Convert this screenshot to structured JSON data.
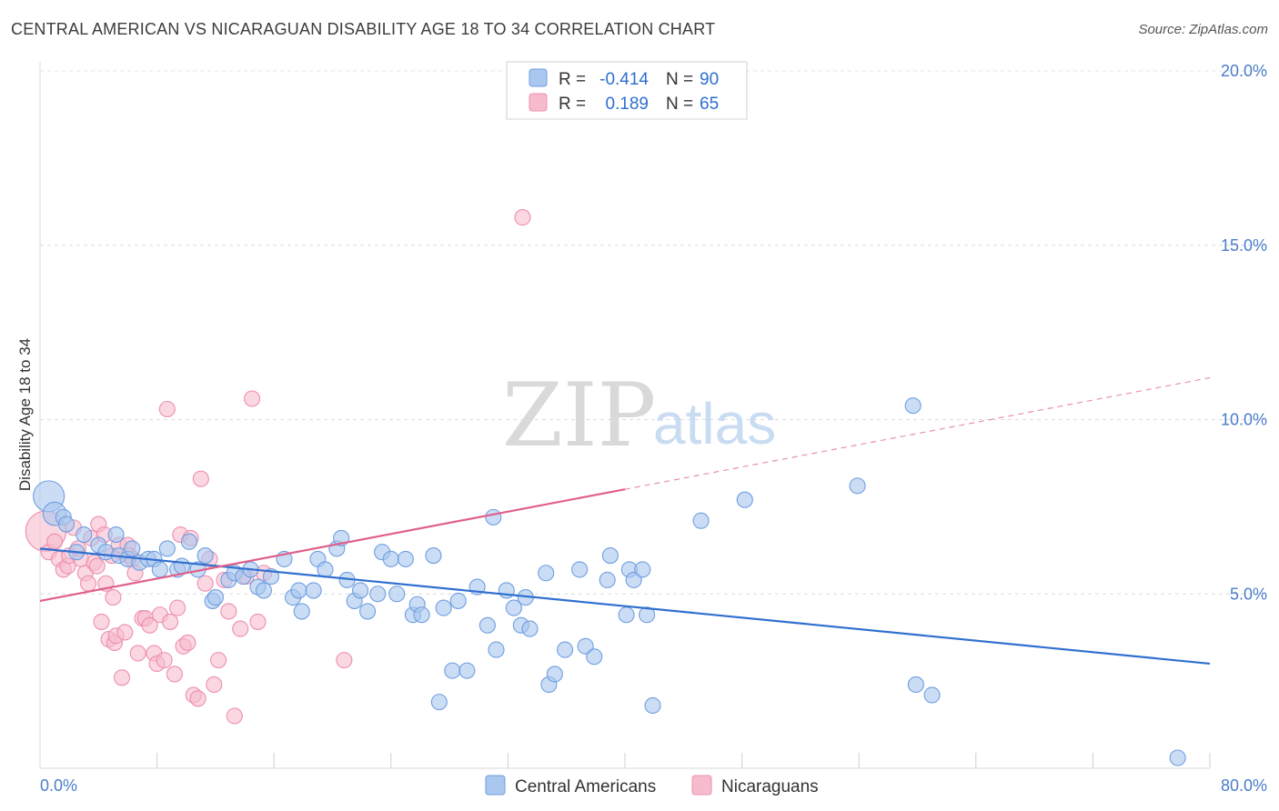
{
  "title": "CENTRAL AMERICAN VS NICARAGUAN DISABILITY AGE 18 TO 34 CORRELATION CHART",
  "source": "Source: ZipAtlas.com",
  "watermark": {
    "zip": "ZIP",
    "atlas": "atlas"
  },
  "legend_top": {
    "rows": [
      {
        "r_label": "R =",
        "r_value": "-0.414",
        "n_label": "N =",
        "n_value": "90",
        "color": "#a9c7ef",
        "stroke": "#6f9ee0"
      },
      {
        "r_label": "R =",
        "r_value": "0.189",
        "n_label": "N =",
        "n_value": "65",
        "color": "#f6bccd",
        "stroke": "#ee8fae"
      }
    ]
  },
  "legend_bottom": [
    {
      "label": "Central Americans",
      "color": "#a9c7ef",
      "stroke": "#6f9ee0"
    },
    {
      "label": "Nicaraguans",
      "color": "#f6bccd",
      "stroke": "#ee8fae"
    }
  ],
  "chart_data": {
    "type": "scatter",
    "title": "CENTRAL AMERICAN VS NICARAGUAN DISABILITY AGE 18 TO 34 CORRELATION CHART",
    "xlabel": "",
    "ylabel": "Disability Age 18 to 34",
    "xlim": [
      0,
      80
    ],
    "ylim": [
      0,
      20
    ],
    "x_tick_labels": [
      "0.0%",
      "80.0%"
    ],
    "y_ticks": [
      5,
      10,
      15,
      20
    ],
    "y_tick_labels": [
      "5.0%",
      "10.0%",
      "15.0%",
      "20.0%"
    ],
    "grid": true,
    "legend_position": "top-center",
    "series": [
      {
        "name": "Central Americans",
        "color": "#6f9ee0",
        "fill": "#a9c7ef",
        "trend": {
          "x": [
            0,
            80
          ],
          "y": [
            6.3,
            3.0
          ],
          "color": "#2f6fcf",
          "style": "solid"
        },
        "points": [
          [
            0.6,
            7.8,
            2.0
          ],
          [
            1.0,
            7.3,
            1.5
          ],
          [
            1.6,
            7.2,
            1.0
          ],
          [
            1.8,
            7.0,
            1.0
          ],
          [
            2.5,
            6.2,
            1.0
          ],
          [
            3.0,
            6.7,
            1.0
          ],
          [
            4.0,
            6.4,
            1.0
          ],
          [
            4.5,
            6.2,
            1.0
          ],
          [
            5.2,
            6.7,
            1.0
          ],
          [
            5.4,
            6.1,
            1.0
          ],
          [
            6.0,
            6.0,
            1.0
          ],
          [
            6.3,
            6.3,
            1.0
          ],
          [
            6.8,
            5.9,
            1.0
          ],
          [
            7.4,
            6.0,
            1.0
          ],
          [
            7.8,
            6.0,
            1.0
          ],
          [
            8.2,
            5.7,
            1.0
          ],
          [
            8.7,
            6.3,
            1.0
          ],
          [
            9.4,
            5.7,
            1.0
          ],
          [
            9.7,
            5.8,
            1.0
          ],
          [
            10.2,
            6.5,
            1.0
          ],
          [
            10.8,
            5.7,
            1.0
          ],
          [
            11.3,
            6.1,
            1.0
          ],
          [
            11.8,
            4.8,
            1.0
          ],
          [
            12.0,
            4.9,
            1.0
          ],
          [
            12.9,
            5.4,
            1.0
          ],
          [
            13.3,
            5.6,
            1.0
          ],
          [
            13.9,
            5.5,
            1.0
          ],
          [
            14.4,
            5.7,
            1.0
          ],
          [
            14.9,
            5.2,
            1.0
          ],
          [
            15.3,
            5.1,
            1.0
          ],
          [
            15.8,
            5.5,
            1.0
          ],
          [
            16.7,
            6.0,
            1.0
          ],
          [
            17.3,
            4.9,
            1.0
          ],
          [
            17.7,
            5.1,
            1.0
          ],
          [
            17.9,
            4.5,
            1.0
          ],
          [
            18.7,
            5.1,
            1.0
          ],
          [
            19.0,
            6.0,
            1.0
          ],
          [
            19.5,
            5.7,
            1.0
          ],
          [
            20.3,
            6.3,
            1.0
          ],
          [
            20.6,
            6.6,
            1.0
          ],
          [
            21.0,
            5.4,
            1.0
          ],
          [
            21.5,
            4.8,
            1.0
          ],
          [
            21.9,
            5.1,
            1.0
          ],
          [
            22.4,
            4.5,
            1.0
          ],
          [
            23.1,
            5.0,
            1.0
          ],
          [
            23.4,
            6.2,
            1.0
          ],
          [
            24.0,
            6.0,
            1.0
          ],
          [
            24.4,
            5.0,
            1.0
          ],
          [
            25.0,
            6.0,
            1.0
          ],
          [
            25.5,
            4.4,
            1.0
          ],
          [
            25.8,
            4.7,
            1.0
          ],
          [
            26.1,
            4.4,
            1.0
          ],
          [
            26.9,
            6.1,
            1.0
          ],
          [
            27.3,
            1.9,
            1.0
          ],
          [
            27.6,
            4.6,
            1.0
          ],
          [
            28.2,
            2.8,
            1.0
          ],
          [
            28.6,
            4.8,
            1.0
          ],
          [
            29.2,
            2.8,
            1.0
          ],
          [
            29.9,
            5.2,
            1.0
          ],
          [
            30.6,
            4.1,
            1.0
          ],
          [
            31.0,
            7.2,
            1.0
          ],
          [
            31.2,
            3.4,
            1.0
          ],
          [
            31.9,
            5.1,
            1.0
          ],
          [
            32.4,
            4.6,
            1.0
          ],
          [
            32.9,
            4.1,
            1.0
          ],
          [
            33.2,
            4.9,
            1.0
          ],
          [
            33.5,
            4.0,
            1.0
          ],
          [
            34.6,
            5.6,
            1.0
          ],
          [
            34.8,
            2.4,
            1.0
          ],
          [
            35.2,
            2.7,
            1.0
          ],
          [
            35.9,
            3.4,
            1.0
          ],
          [
            36.9,
            5.7,
            1.0
          ],
          [
            37.3,
            3.5,
            1.0
          ],
          [
            37.9,
            3.2,
            1.0
          ],
          [
            38.8,
            5.4,
            1.0
          ],
          [
            39.0,
            6.1,
            1.0
          ],
          [
            40.1,
            4.4,
            1.0
          ],
          [
            40.3,
            5.7,
            1.0
          ],
          [
            40.6,
            5.4,
            1.0
          ],
          [
            41.2,
            5.7,
            1.0
          ],
          [
            41.5,
            4.4,
            1.0
          ],
          [
            41.9,
            1.8,
            1.0
          ],
          [
            45.2,
            7.1,
            1.0
          ],
          [
            48.2,
            7.7,
            1.0
          ],
          [
            55.9,
            8.1,
            1.0
          ],
          [
            59.7,
            10.4,
            1.0
          ],
          [
            59.9,
            2.4,
            1.0
          ],
          [
            61.0,
            2.1,
            1.0
          ],
          [
            77.8,
            0.3,
            1.0
          ]
        ]
      },
      {
        "name": "Nicaraguans",
        "color": "#ee8fae",
        "fill": "#f6bccd",
        "trend": {
          "x": [
            0,
            40
          ],
          "y": [
            4.8,
            8.0
          ],
          "color": "#e0608a",
          "style": "solid",
          "extend_to": [
            80,
            11.2
          ],
          "extend_style": "dashed"
        },
        "points": [
          [
            0.4,
            6.8,
            2.6
          ],
          [
            0.6,
            6.2,
            1.0
          ],
          [
            1.0,
            6.5,
            1.0
          ],
          [
            1.3,
            6.0,
            1.0
          ],
          [
            1.6,
            5.7,
            1.0
          ],
          [
            1.9,
            5.8,
            1.0
          ],
          [
            2.0,
            6.1,
            1.0
          ],
          [
            2.3,
            6.9,
            1.0
          ],
          [
            2.6,
            6.3,
            1.0
          ],
          [
            2.8,
            6.0,
            1.0
          ],
          [
            3.1,
            5.6,
            1.0
          ],
          [
            3.3,
            5.3,
            1.0
          ],
          [
            3.5,
            6.6,
            1.0
          ],
          [
            3.7,
            5.9,
            1.0
          ],
          [
            3.9,
            5.8,
            1.0
          ],
          [
            4.0,
            7.0,
            1.0
          ],
          [
            4.2,
            4.2,
            1.0
          ],
          [
            4.4,
            6.7,
            1.0
          ],
          [
            4.5,
            5.3,
            1.0
          ],
          [
            4.7,
            3.7,
            1.0
          ],
          [
            4.9,
            6.1,
            1.0
          ],
          [
            5.0,
            4.9,
            1.0
          ],
          [
            5.1,
            3.6,
            1.0
          ],
          [
            5.2,
            3.8,
            1.0
          ],
          [
            5.4,
            6.4,
            1.0
          ],
          [
            5.6,
            2.6,
            1.0
          ],
          [
            5.8,
            3.9,
            1.0
          ],
          [
            6.0,
            6.4,
            1.0
          ],
          [
            6.1,
            6.1,
            1.0
          ],
          [
            6.3,
            6.0,
            1.0
          ],
          [
            6.5,
            5.6,
            1.0
          ],
          [
            6.7,
            3.3,
            1.0
          ],
          [
            7.0,
            4.3,
            1.0
          ],
          [
            7.2,
            4.3,
            1.0
          ],
          [
            7.5,
            4.1,
            1.0
          ],
          [
            7.8,
            3.3,
            1.0
          ],
          [
            8.0,
            3.0,
            1.0
          ],
          [
            8.2,
            4.4,
            1.0
          ],
          [
            8.5,
            3.1,
            1.0
          ],
          [
            8.7,
            10.3,
            1.0
          ],
          [
            8.9,
            4.2,
            1.0
          ],
          [
            9.2,
            2.7,
            1.0
          ],
          [
            9.4,
            4.6,
            1.0
          ],
          [
            9.6,
            6.7,
            1.0
          ],
          [
            9.8,
            3.5,
            1.0
          ],
          [
            10.1,
            3.6,
            1.0
          ],
          [
            10.3,
            6.6,
            1.0
          ],
          [
            10.5,
            2.1,
            1.0
          ],
          [
            10.8,
            2.0,
            1.0
          ],
          [
            11.0,
            8.3,
            1.0
          ],
          [
            11.3,
            5.3,
            1.0
          ],
          [
            11.6,
            6.0,
            1.0
          ],
          [
            11.9,
            2.4,
            1.0
          ],
          [
            12.2,
            3.1,
            1.0
          ],
          [
            12.6,
            5.4,
            1.0
          ],
          [
            12.9,
            4.5,
            1.0
          ],
          [
            13.3,
            1.5,
            1.0
          ],
          [
            13.7,
            4.0,
            1.0
          ],
          [
            14.1,
            5.5,
            1.0
          ],
          [
            14.5,
            10.6,
            1.0
          ],
          [
            14.9,
            4.2,
            1.0
          ],
          [
            15.3,
            5.6,
            1.0
          ],
          [
            20.8,
            3.1,
            1.0
          ],
          [
            33.0,
            15.8,
            1.0
          ]
        ]
      }
    ]
  }
}
